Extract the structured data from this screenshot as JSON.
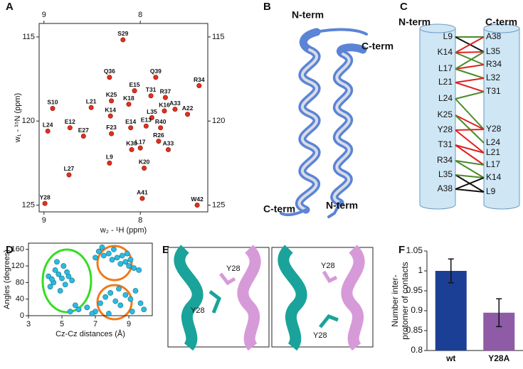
{
  "panel_labels": [
    "A",
    "B",
    "C",
    "D",
    "E",
    "F"
  ],
  "chart_data": [
    {
      "type": "scatter",
      "xlabel": "w₂ - ¹H (ppm)",
      "ylabel": "w₁ - ¹⁵N (ppm)",
      "color": "#e0301e",
      "mirror": true,
      "xlim": [
        9.05,
        7.3
      ],
      "xticks": [
        9,
        8
      ],
      "ylim": [
        125.4,
        114.2
      ],
      "yticks": [
        115,
        120,
        125
      ],
      "labels": [
        "S29",
        "Q36",
        "Q39",
        "R34",
        "E15",
        "T31",
        "R37",
        "K25",
        "S10",
        "A33",
        "L21",
        "K18",
        "K16",
        "K14",
        "L35",
        "A22",
        "E12",
        "E27",
        "E14",
        "E13",
        "F23",
        "R40",
        "L24",
        "R26",
        "A33",
        "K30",
        "L17",
        "L9",
        "K20",
        "L27",
        "A41",
        "Y28",
        "W42"
      ],
      "x": [
        8.18,
        8.32,
        7.84,
        7.39,
        8.06,
        7.89,
        7.74,
        8.3,
        8.91,
        7.64,
        8.51,
        8.12,
        7.75,
        8.31,
        7.88,
        7.51,
        8.73,
        8.59,
        8.1,
        7.94,
        8.3,
        7.79,
        8.96,
        7.81,
        7.71,
        8.09,
        8.0,
        8.32,
        7.96,
        8.74,
        7.98,
        8.99,
        7.41
      ],
      "y": [
        115.17,
        117.4,
        117.4,
        117.9,
        118.2,
        118.5,
        118.6,
        118.8,
        119.25,
        119.3,
        119.2,
        119.0,
        119.4,
        119.7,
        119.8,
        119.6,
        120.4,
        120.9,
        120.4,
        120.3,
        120.75,
        120.4,
        120.6,
        121.2,
        121.7,
        121.7,
        121.6,
        122.5,
        122.8,
        123.2,
        124.6,
        124.9,
        125.0
      ]
    },
    {
      "type": "scatter",
      "xlabel": "Cz-Cz distances (Å)",
      "ylabel": "Angles (degrees)",
      "color": "#2bbbe0",
      "xlim": [
        3,
        10.4
      ],
      "xticks": [
        3,
        5,
        7,
        9
      ],
      "ylim": [
        0,
        175
      ],
      "yticks": [
        0,
        40,
        80,
        120,
        160
      ],
      "x": [
        4.2,
        4.5,
        4.8,
        5.0,
        5.2,
        4.6,
        5.4,
        4.9,
        5.1,
        4.3,
        5.6,
        4.7,
        5.3,
        4.4,
        7.2,
        7.5,
        7.8,
        8.0,
        8.3,
        8.5,
        8.8,
        9.0,
        9.3,
        9.6,
        7.4,
        8.1,
        8.6,
        7.0,
        9.1,
        8.9,
        5.5,
        6.0,
        6.5,
        7.0,
        7.3,
        7.6,
        7.9,
        8.2,
        8.5,
        8.8,
        9.1,
        9.4,
        9.7,
        9.9,
        7.8,
        8.4,
        6.8,
        9.2,
        5.8
      ],
      "y": [
        95,
        80,
        100,
        90,
        75,
        110,
        95,
        60,
        120,
        70,
        85,
        130,
        105,
        88,
        155,
        145,
        150,
        135,
        140,
        125,
        130,
        120,
        115,
        110,
        165,
        160,
        145,
        140,
        135,
        150,
        10,
        15,
        20,
        10,
        30,
        45,
        55,
        35,
        25,
        50,
        40,
        60,
        30,
        15,
        5,
        65,
        5,
        10,
        25
      ]
    },
    {
      "type": "bar",
      "ylabel": [
        "Number inter-",
        "protomer of contacts"
      ],
      "categories": [
        "wt",
        "Y28A"
      ],
      "values": [
        1.0,
        0.895
      ],
      "errors": [
        0.03,
        0.035
      ],
      "colors": [
        "#1c3f96",
        "#8f5aa6"
      ],
      "ylim": [
        0.8,
        1.05
      ],
      "yticks": [
        0.8,
        0.85,
        0.9,
        0.95,
        {
          "value": 1,
          "label": "1"
        },
        1.05
      ]
    }
  ],
  "panel_b": {
    "labels": [
      "N-term",
      "C-term",
      "C-term",
      "N-term"
    ]
  },
  "panel_c": {
    "left_header": "N-term",
    "right_header": "C-term",
    "left": [
      "L9",
      "K14",
      "L17",
      "L21",
      "L24",
      "K25",
      "Y28",
      "T31",
      "R34",
      "L35",
      "A38"
    ],
    "right": [
      "A38",
      "L35",
      "R34",
      "L32",
      "T31",
      "Y28",
      "L24",
      "L21",
      "L17",
      "K14",
      "L9"
    ]
  },
  "panel_e": {
    "labels": [
      "Y28",
      "Y28",
      "Y28",
      "Y28"
    ]
  }
}
